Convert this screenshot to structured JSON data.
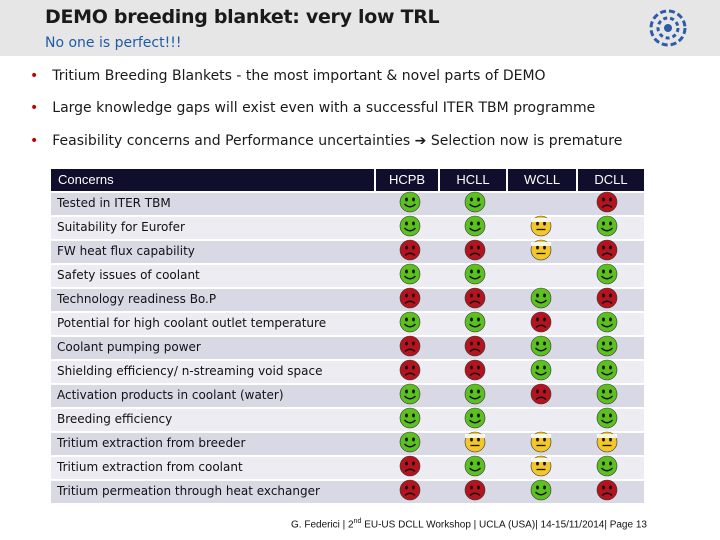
{
  "header": {
    "title": "DEMO breeding blanket: very low TRL",
    "subtitle": "No one is perfect!!!"
  },
  "bullets": [
    "Tritium Breeding Blankets - the most important & novel parts of DEMO",
    "Large knowledge gaps will exist even with a successful ITER TBM programme",
    "Feasibility concerns and Performance uncertainties",
    "Selection now is premature"
  ],
  "table": {
    "header_concerns": "Concerns",
    "columns": [
      "HCPB",
      "HCLL",
      "WCLL",
      "DCLL"
    ],
    "rows": [
      {
        "label": "Tested in ITER TBM",
        "ratings": [
          "green",
          "green",
          "none",
          "red"
        ]
      },
      {
        "label": "Suitability for Eurofer",
        "ratings": [
          "green",
          "green",
          "yellow",
          "green"
        ]
      },
      {
        "label": "FW heat flux capability",
        "ratings": [
          "red",
          "red",
          "yellow",
          "red"
        ]
      },
      {
        "label": "Safety issues of coolant",
        "ratings": [
          "green",
          "green",
          "none",
          "green"
        ]
      },
      {
        "label": "Technology readiness Bo.P",
        "ratings": [
          "red",
          "red",
          "green",
          "red"
        ]
      },
      {
        "label": "Potential for high coolant outlet temperature",
        "ratings": [
          "green",
          "green",
          "red",
          "green"
        ]
      },
      {
        "label": "Coolant pumping power",
        "ratings": [
          "red",
          "red",
          "green",
          "green"
        ]
      },
      {
        "label": "Shielding efficiency/ n-streaming void space",
        "ratings": [
          "red",
          "red",
          "green",
          "green"
        ]
      },
      {
        "label": "Activation products in coolant (water)",
        "ratings": [
          "green",
          "green",
          "red",
          "green"
        ]
      },
      {
        "label": "Breeding efficiency",
        "ratings": [
          "green",
          "green",
          "none",
          "green"
        ]
      },
      {
        "label": "Tritium extraction from breeder",
        "ratings": [
          "green",
          "yellow",
          "yellow",
          "yellow"
        ]
      },
      {
        "label": "Tritium extraction from coolant",
        "ratings": [
          "red",
          "green",
          "yellow",
          "green"
        ]
      },
      {
        "label": "Tritium permeation through heat exchanger",
        "ratings": [
          "red",
          "red",
          "green",
          "red"
        ]
      }
    ]
  },
  "footer": {
    "prefix": "G. Federici | 2",
    "sup": "nd",
    "rest": " EU-US DCLL Workshop | UCLA (USA)| 14-15/11/2014| Page 13"
  },
  "colors": {
    "header_bg": "#e6e6e6",
    "subtitle": "#1f5aa8",
    "bullet_dot": "#c00000",
    "table_head_bg": "#0f0f2d",
    "row_bg_a": "#d9d9e6",
    "row_bg_b": "#ececf2",
    "face_green": "#5cc01e",
    "face_red": "#b4141e",
    "face_yellow": "#f3c62a"
  }
}
